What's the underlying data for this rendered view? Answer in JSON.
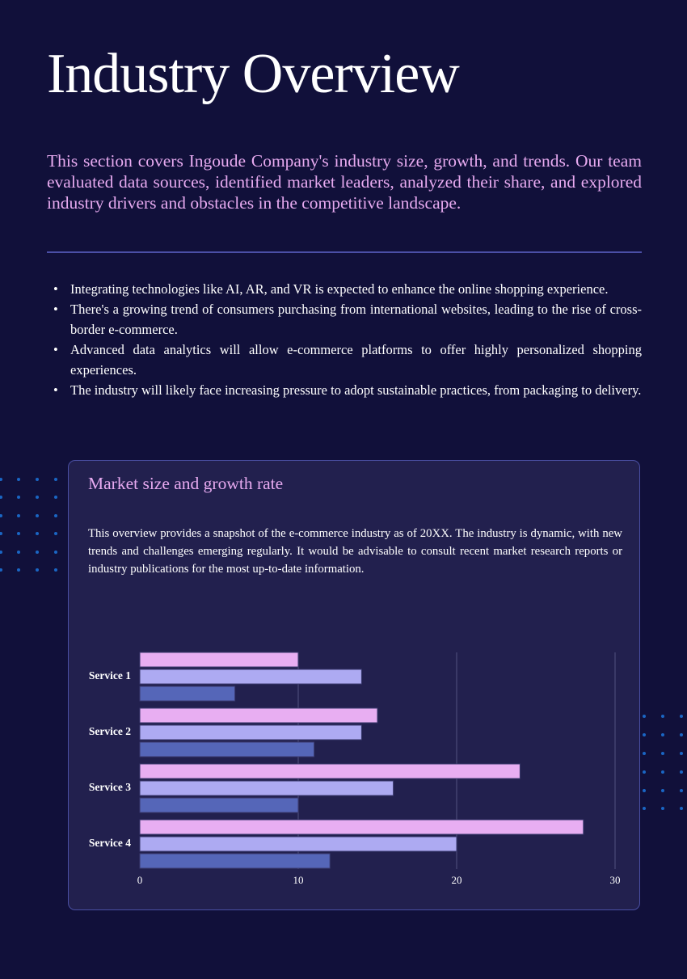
{
  "title": "Industry Overview",
  "intro": "This section covers Ingoude Company's industry size, growth, and trends. Our team evaluated data sources, identified market leaders, analyzed their share, and explored industry drivers and obstacles in the competitive landscape.",
  "bullets": [
    "Integrating technologies like AI, AR, and VR is expected to enhance the online shopping experience.",
    "There's a growing trend of consumers purchasing from international websites, leading to the rise of cross-border e-commerce.",
    "Advanced data analytics will allow e-commerce platforms to offer highly personalized shopping experiences.",
    "The industry will likely face increasing pressure to adopt sustainable practices, from packaging to delivery."
  ],
  "card": {
    "title": "Market size and growth rate",
    "text": "This overview provides a snapshot of the e-commerce industry as of 20XX. The industry is dynamic, with new trends and challenges emerging regularly. It would be advisable to consult recent market research reports or industry publications for the most up-to-date information."
  },
  "colors": {
    "background": "#11103a",
    "card": "#22204e",
    "accent": "#e7aaf0",
    "series": [
      "#e8aef2",
      "#adaaf2",
      "#5566b8"
    ]
  },
  "chart_data": {
    "type": "bar",
    "orientation": "horizontal",
    "categories": [
      "Service 1",
      "Service 2",
      "Service 3",
      "Service 4"
    ],
    "series": [
      {
        "values": [
          10,
          15,
          24,
          28
        ]
      },
      {
        "values": [
          14,
          14,
          16,
          20
        ]
      },
      {
        "values": [
          6,
          11,
          10,
          12
        ]
      }
    ],
    "xlim": [
      0,
      30
    ],
    "xticks": [
      "0",
      "10",
      "20",
      "30"
    ],
    "grid": true,
    "legend": "none"
  }
}
